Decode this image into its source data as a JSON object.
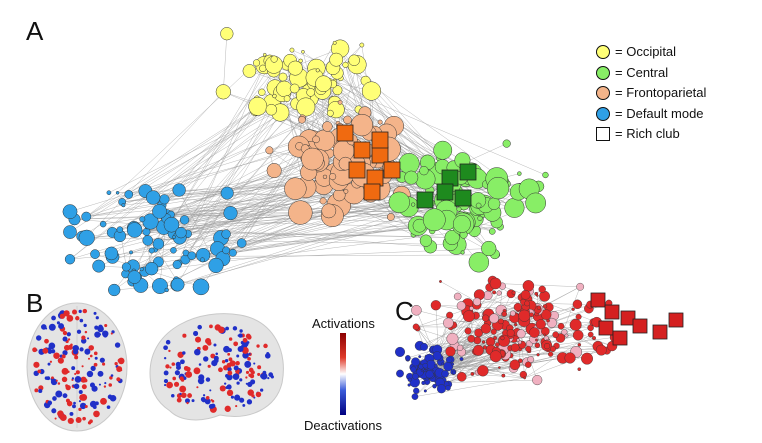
{
  "panels": {
    "a": "A",
    "b": "B",
    "c": "C"
  },
  "legend": [
    {
      "label": "= Occipital",
      "shape": "circle",
      "color": "#ffff77"
    },
    {
      "label": "= Central",
      "shape": "circle",
      "color": "#88ee66"
    },
    {
      "label": "= Frontoparietal",
      "shape": "circle",
      "color": "#f4b48a"
    },
    {
      "label": "= Default mode",
      "shape": "circle",
      "color": "#2fa0e6"
    },
    {
      "label": "= Rich club",
      "shape": "square",
      "color": "#ffffff"
    }
  ],
  "colorbar": {
    "top_label": "Activations",
    "bottom_label": "Deactivations"
  },
  "colors": {
    "occipital": "#ffff77",
    "central": "#88ee66",
    "frontoparietal": "#f4b48a",
    "default_mode": "#2fa0e6",
    "rich_club_frontoparietal": "#f06a10",
    "rich_club_central": "#1e8a1e",
    "activation": "#e02a2a",
    "deactivation": "#2030c8",
    "edge": "#9a9a9a"
  }
}
